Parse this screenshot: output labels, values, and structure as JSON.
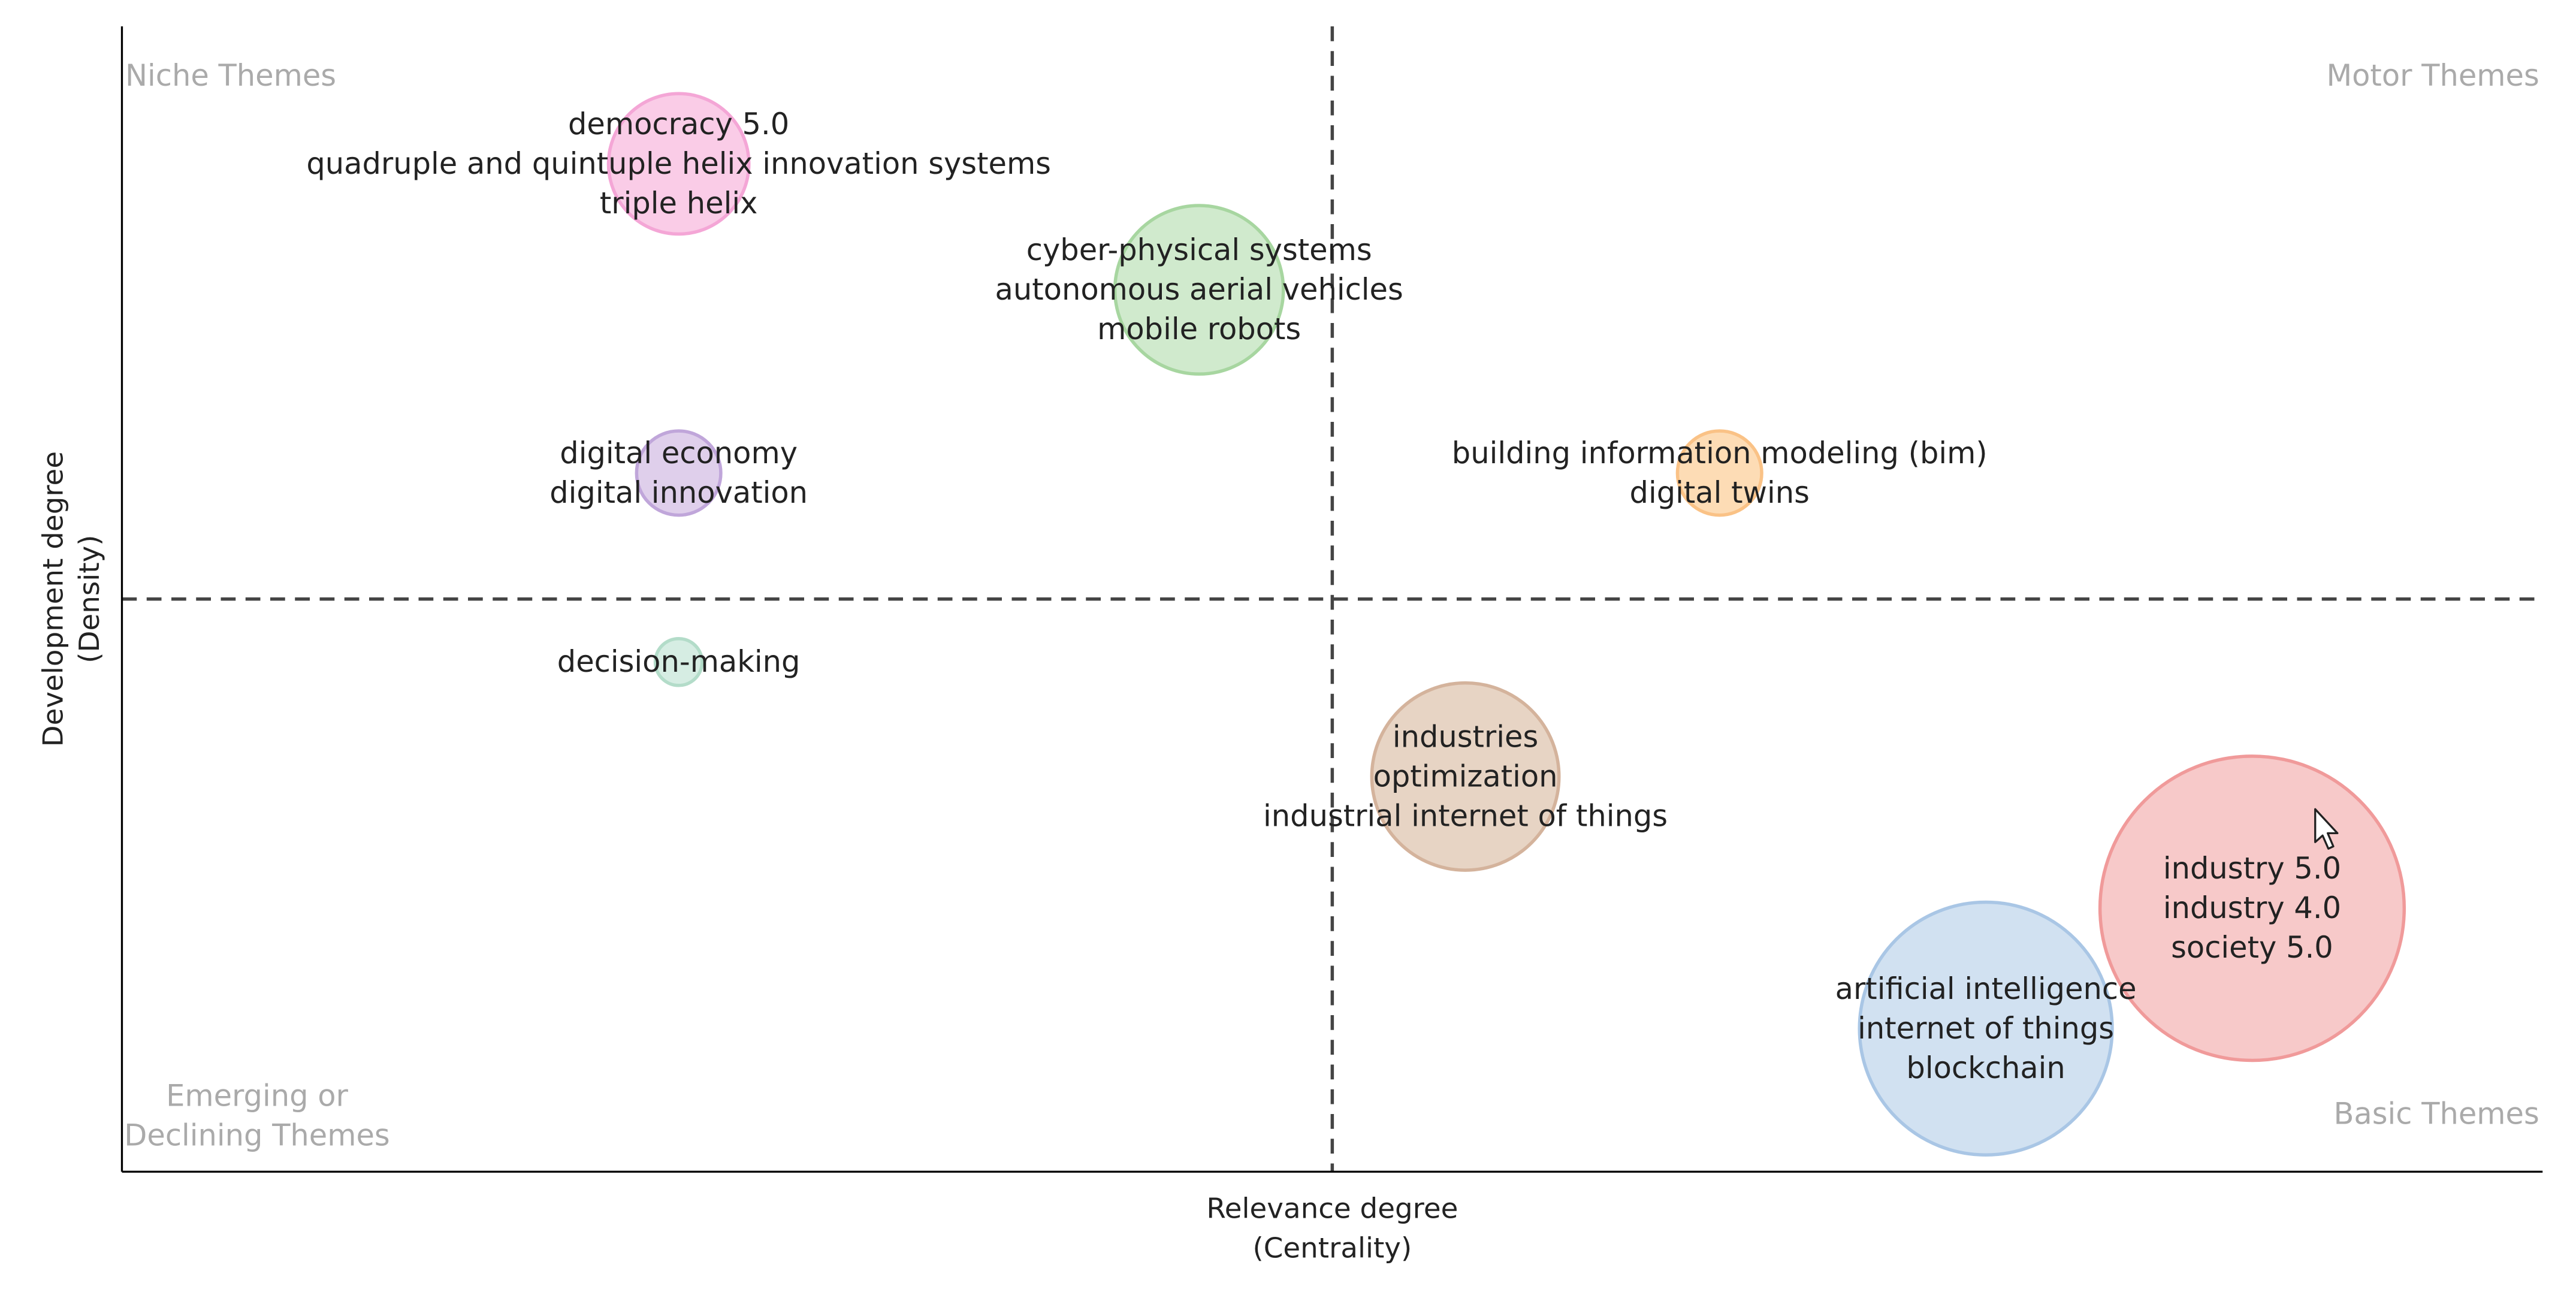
{
  "chart_data": {
    "type": "scatter",
    "title": "",
    "xlabel": [
      "Relevance degree",
      "(Centrality)"
    ],
    "ylabel": [
      "Development degree",
      "(Density)"
    ],
    "xlim": [
      0,
      100
    ],
    "ylim": [
      0,
      100
    ],
    "divider": {
      "x": 50,
      "y": 50
    },
    "quadrants": [
      {
        "position": "top-left",
        "lines": [
          "Niche Themes"
        ]
      },
      {
        "position": "top-right",
        "lines": [
          "Motor Themes"
        ]
      },
      {
        "position": "bottom-left",
        "lines": [
          "Emerging or",
          "Declining Themes"
        ]
      },
      {
        "position": "bottom-right",
        "lines": [
          "Basic Themes"
        ]
      }
    ],
    "clusters": [
      {
        "x": 23,
        "y": 88,
        "size": 3.0,
        "color": "#f9c3e3",
        "stroke": "#f4a6d6",
        "labels": [
          "democracy 5.0",
          "quadruple and quintuple helix innovation systems",
          "triple helix"
        ]
      },
      {
        "x": 44.5,
        "y": 77,
        "size": 3.6,
        "color": "#c8e6c4",
        "stroke": "#a7d6a0",
        "labels": [
          "cyber-physical systems",
          "autonomous aerial vehicles",
          "mobile robots"
        ]
      },
      {
        "x": 23,
        "y": 61,
        "size": 1.8,
        "color": "#d9c7e8",
        "stroke": "#c0a6da",
        "labels": [
          "digital economy",
          "digital innovation"
        ]
      },
      {
        "x": 66,
        "y": 61,
        "size": 1.8,
        "color": "#fdd6a8",
        "stroke": "#fac286",
        "labels": [
          "building information modeling (bim)",
          "digital twins"
        ]
      },
      {
        "x": 23,
        "y": 44.5,
        "size": 1.0,
        "color": "#cfeade",
        "stroke": "#b3dcc9",
        "labels": [
          "decision-making"
        ]
      },
      {
        "x": 55.5,
        "y": 34.5,
        "size": 4.0,
        "color": "#e3ccba",
        "stroke": "#d4b39c",
        "labels": [
          "industries",
          "optimization",
          "industrial internet of things"
        ]
      },
      {
        "x": 88,
        "y": 23,
        "size": 6.5,
        "color": "#f6c0c0",
        "stroke": "#f09a9a",
        "labels": [
          "industry 5.0",
          "industry 4.0",
          "society 5.0"
        ]
      },
      {
        "x": 77,
        "y": 12.5,
        "size": 5.4,
        "color": "#c9dcee",
        "stroke": "#a9c6e5",
        "labels": [
          "artificial intelligence",
          "internet of things",
          "blockchain"
        ]
      }
    ]
  }
}
